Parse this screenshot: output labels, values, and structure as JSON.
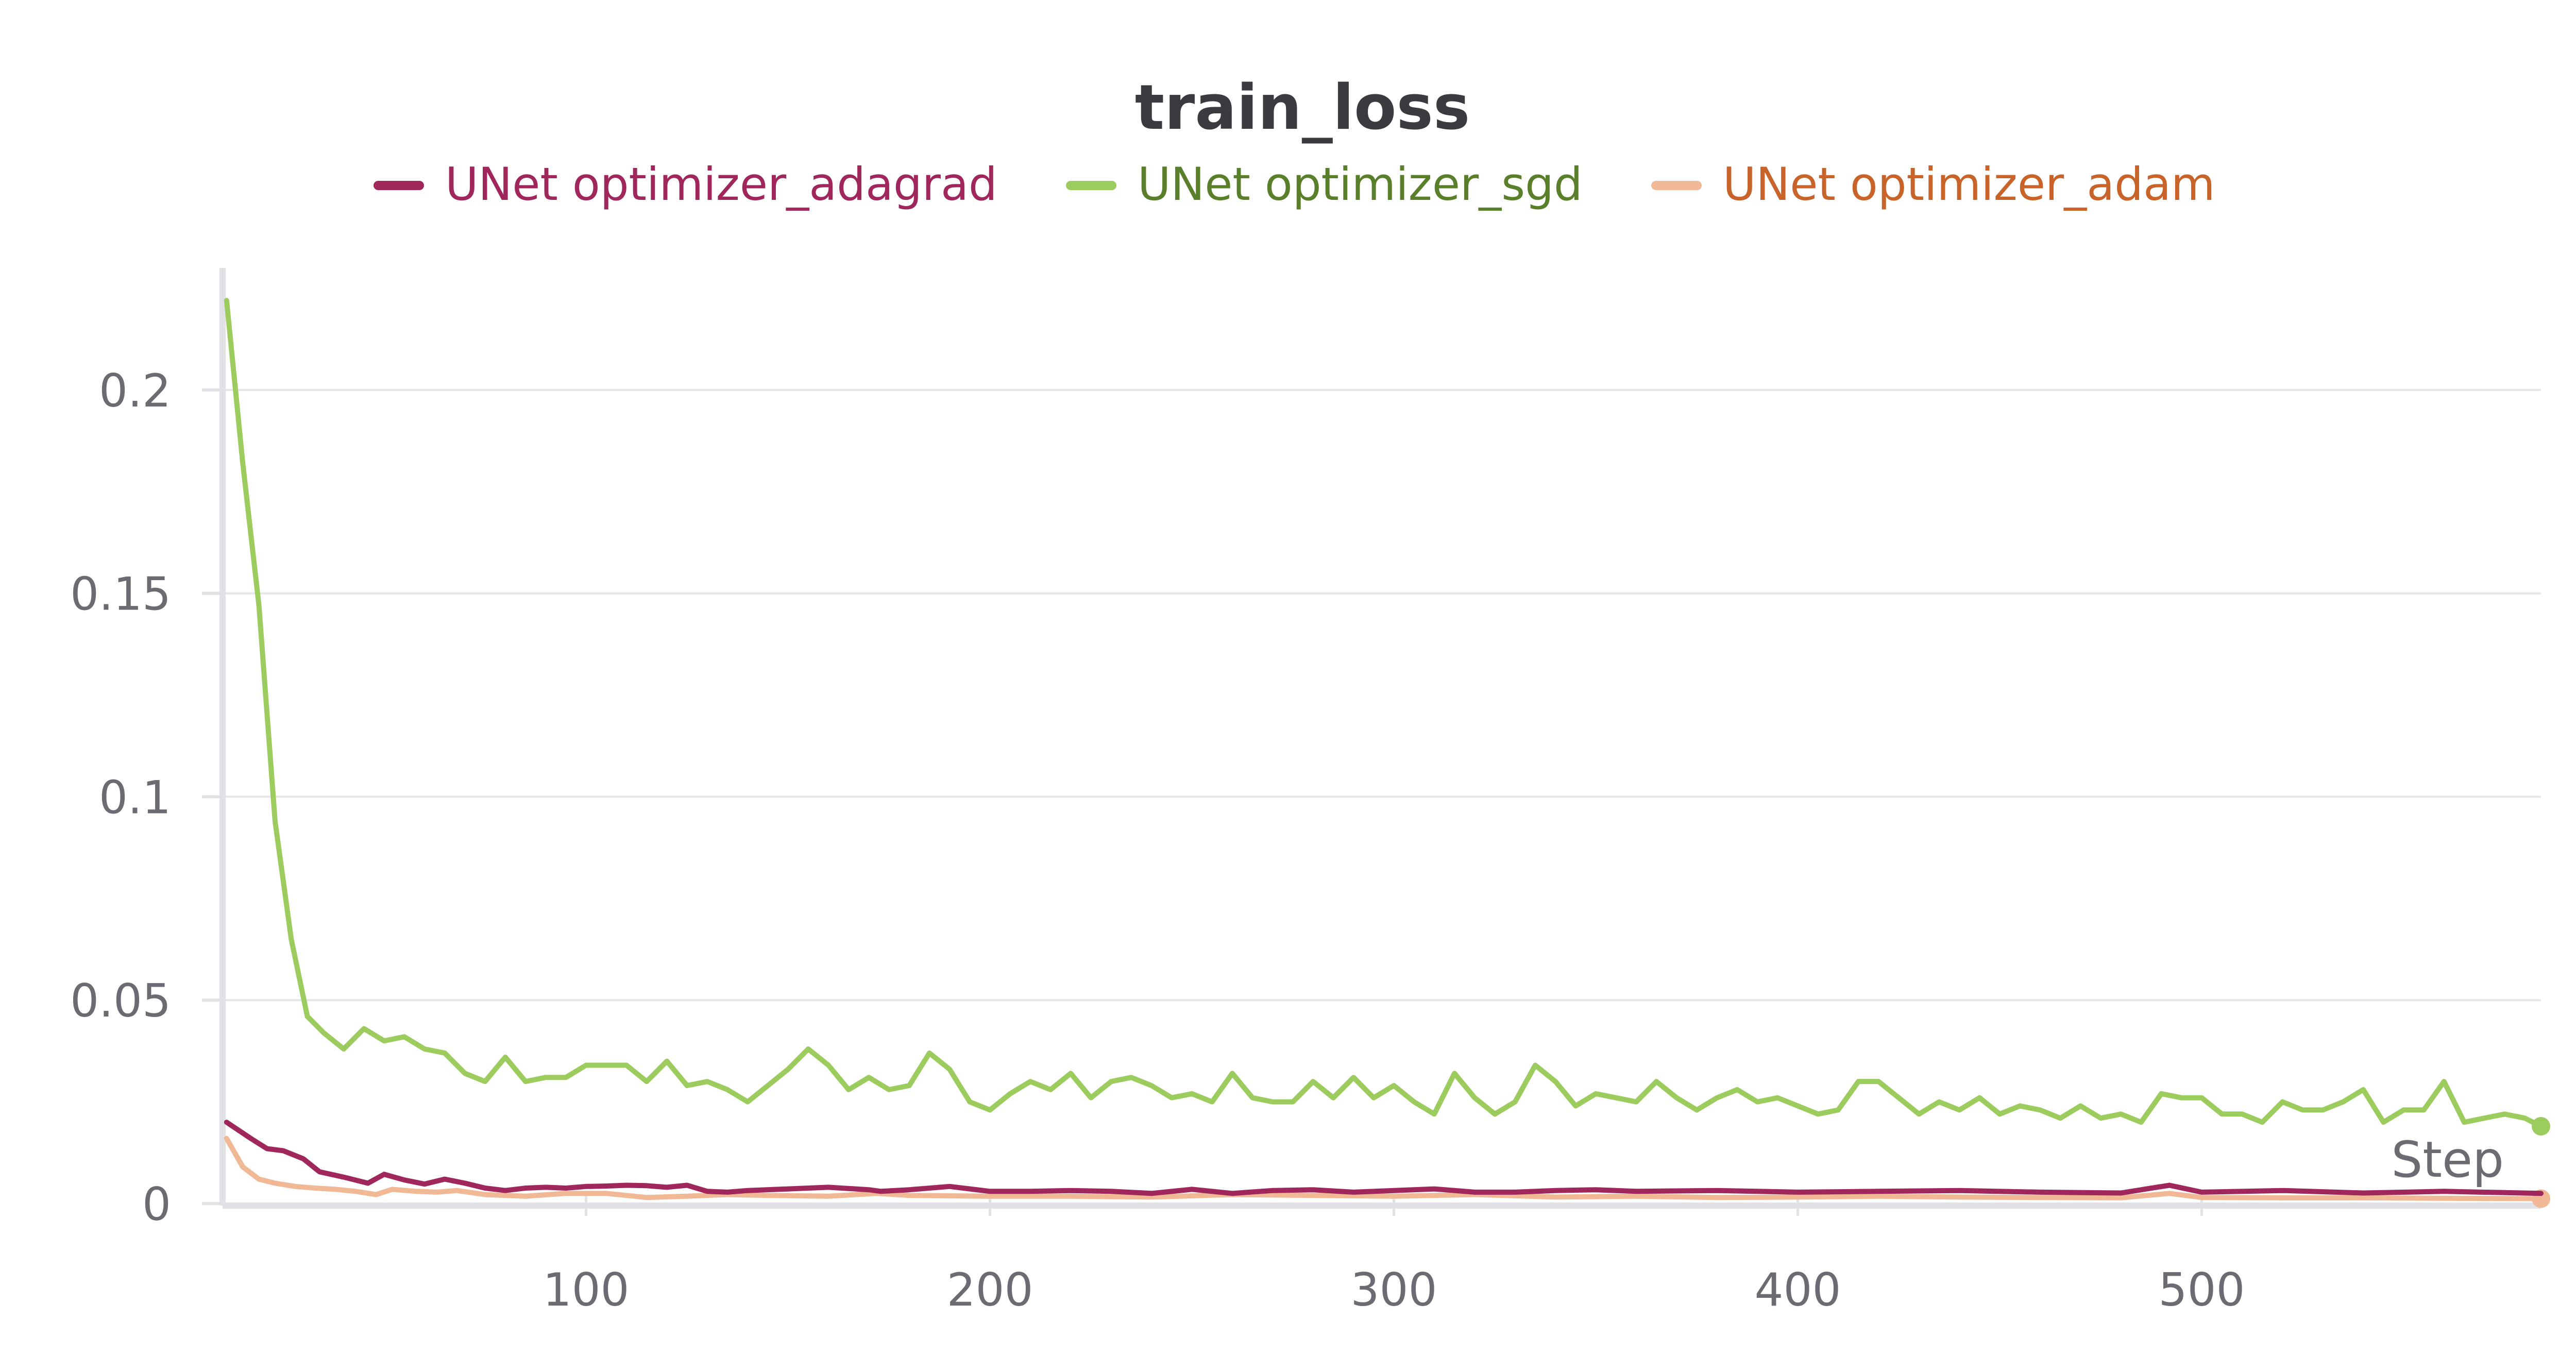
{
  "chart_data": {
    "type": "line",
    "title": "train_loss",
    "xlabel": "Step",
    "ylabel": "",
    "xlim": [
      10,
      584
    ],
    "ylim": [
      0,
      0.23
    ],
    "x_ticks": [
      100,
      200,
      300,
      400,
      500
    ],
    "x_tick_labels": [
      "100",
      "200",
      "300",
      "400",
      "500"
    ],
    "y_ticks": [
      0,
      0.05,
      0.1,
      0.15,
      0.2
    ],
    "y_tick_labels": [
      "0",
      "0.05",
      "0.1",
      "0.15",
      "0.2"
    ],
    "grid": true,
    "legend_position": "top",
    "series": [
      {
        "name": "UNet optimizer_adagrad",
        "color": "#a0275b",
        "legend_text_color": "#a0275b",
        "x": [
          11,
          17,
          21,
          25,
          30,
          34,
          40,
          46,
          50,
          55,
          60,
          65,
          70,
          75,
          80,
          85,
          90,
          95,
          100,
          105,
          110,
          115,
          120,
          125,
          130,
          135,
          140,
          150,
          160,
          170,
          173,
          180,
          190,
          200,
          210,
          220,
          230,
          240,
          250,
          260,
          270,
          280,
          290,
          300,
          310,
          320,
          330,
          340,
          350,
          360,
          380,
          400,
          420,
          440,
          460,
          480,
          492,
          500,
          520,
          540,
          560,
          584
        ],
        "y": [
          0.02,
          0.016,
          0.0135,
          0.013,
          0.011,
          0.0078,
          0.0065,
          0.005,
          0.0072,
          0.0058,
          0.0048,
          0.006,
          0.005,
          0.0038,
          0.0032,
          0.0038,
          0.004,
          0.0038,
          0.0042,
          0.0043,
          0.0045,
          0.0044,
          0.004,
          0.0045,
          0.003,
          0.0028,
          0.0032,
          0.0036,
          0.004,
          0.0034,
          0.003,
          0.0034,
          0.0042,
          0.003,
          0.003,
          0.0032,
          0.003,
          0.0025,
          0.0035,
          0.0025,
          0.0032,
          0.0034,
          0.0028,
          0.0032,
          0.0036,
          0.0028,
          0.0028,
          0.0032,
          0.0034,
          0.003,
          0.0032,
          0.0028,
          0.003,
          0.0032,
          0.0028,
          0.0026,
          0.0045,
          0.0028,
          0.0032,
          0.0026,
          0.003,
          0.0025
        ]
      },
      {
        "name": "UNet optimizer_sgd",
        "color": "#9ccc5e",
        "legend_text_color": "#5a7f2b",
        "x": [
          11,
          15,
          19,
          23,
          27,
          31,
          35,
          40,
          45,
          50,
          55,
          60,
          65,
          70,
          75,
          80,
          85,
          90,
          95,
          100,
          105,
          110,
          115,
          120,
          125,
          130,
          135,
          140,
          145,
          150,
          155,
          160,
          165,
          170,
          175,
          180,
          185,
          190,
          195,
          200,
          205,
          210,
          215,
          220,
          225,
          230,
          235,
          240,
          245,
          250,
          255,
          260,
          265,
          270,
          275,
          280,
          285,
          290,
          295,
          300,
          305,
          310,
          315,
          320,
          325,
          330,
          335,
          340,
          345,
          350,
          355,
          360,
          365,
          370,
          375,
          380,
          385,
          390,
          395,
          400,
          405,
          410,
          415,
          420,
          425,
          430,
          435,
          440,
          445,
          450,
          455,
          460,
          465,
          470,
          475,
          480,
          485,
          490,
          495,
          500,
          505,
          510,
          515,
          520,
          525,
          530,
          535,
          540,
          545,
          550,
          555,
          560,
          565,
          570,
          575,
          580,
          584
        ],
        "y": [
          0.222,
          0.182,
          0.147,
          0.094,
          0.065,
          0.046,
          0.042,
          0.038,
          0.043,
          0.04,
          0.041,
          0.038,
          0.037,
          0.032,
          0.03,
          0.036,
          0.03,
          0.031,
          0.031,
          0.034,
          0.034,
          0.034,
          0.03,
          0.035,
          0.029,
          0.03,
          0.028,
          0.025,
          0.029,
          0.033,
          0.038,
          0.034,
          0.028,
          0.031,
          0.028,
          0.029,
          0.037,
          0.033,
          0.025,
          0.023,
          0.027,
          0.03,
          0.028,
          0.032,
          0.026,
          0.03,
          0.031,
          0.029,
          0.026,
          0.027,
          0.025,
          0.032,
          0.026,
          0.025,
          0.025,
          0.03,
          0.026,
          0.031,
          0.026,
          0.029,
          0.025,
          0.022,
          0.032,
          0.026,
          0.022,
          0.025,
          0.034,
          0.03,
          0.024,
          0.027,
          0.026,
          0.025,
          0.03,
          0.026,
          0.023,
          0.026,
          0.028,
          0.025,
          0.026,
          0.024,
          0.022,
          0.023,
          0.03,
          0.03,
          0.026,
          0.022,
          0.025,
          0.023,
          0.026,
          0.022,
          0.024,
          0.023,
          0.021,
          0.024,
          0.021,
          0.022,
          0.02,
          0.027,
          0.026,
          0.026,
          0.022,
          0.022,
          0.02,
          0.025,
          0.023,
          0.023,
          0.025,
          0.028,
          0.02,
          0.023,
          0.023,
          0.03,
          0.02,
          0.021,
          0.022,
          0.021,
          0.019
        ],
        "end_marker": true
      },
      {
        "name": "UNet optimizer_adam",
        "color": "#f1b896",
        "legend_text_color": "#c8632a",
        "x": [
          11,
          15,
          19,
          23,
          28,
          33,
          38,
          43,
          48,
          52,
          58,
          63,
          68,
          75,
          85,
          95,
          105,
          115,
          125,
          135,
          145,
          160,
          172,
          180,
          200,
          220,
          240,
          260,
          280,
          300,
          320,
          340,
          360,
          380,
          400,
          420,
          440,
          460,
          480,
          492,
          500,
          520,
          540,
          560,
          584
        ],
        "y": [
          0.016,
          0.009,
          0.006,
          0.005,
          0.0042,
          0.0038,
          0.0035,
          0.003,
          0.0022,
          0.0035,
          0.003,
          0.0028,
          0.0032,
          0.0022,
          0.0018,
          0.0025,
          0.0025,
          0.0015,
          0.0018,
          0.0022,
          0.002,
          0.0018,
          0.0025,
          0.002,
          0.0018,
          0.0018,
          0.0016,
          0.0022,
          0.002,
          0.0018,
          0.0022,
          0.0016,
          0.0018,
          0.0015,
          0.0016,
          0.0018,
          0.0016,
          0.0015,
          0.0014,
          0.0025,
          0.0015,
          0.0014,
          0.0014,
          0.0013,
          0.0012
        ],
        "end_marker": true
      }
    ]
  }
}
